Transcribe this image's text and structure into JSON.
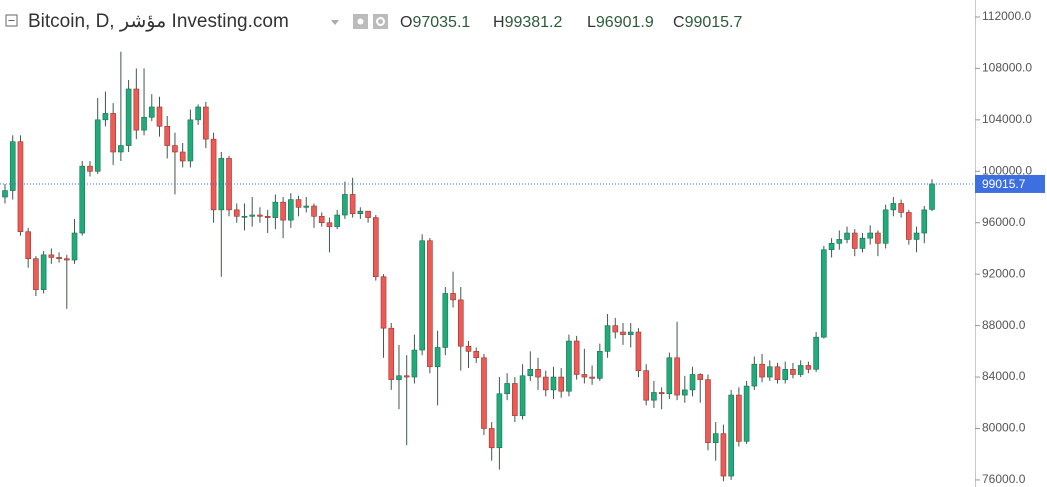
{
  "chart_data": {
    "type": "candlestick",
    "title": "Bitcoin, D, مؤشر Investing.com",
    "ohlc_labels": [
      "O",
      "H",
      "L",
      "C"
    ],
    "open": [
      98000,
      98500,
      102300,
      95300,
      93200,
      90800,
      93500,
      93300,
      93200,
      93100,
      95200,
      100400,
      100000,
      104000,
      104500,
      101500,
      102000,
      106400,
      103200,
      104200,
      105000,
      103500,
      102000,
      101500,
      100800,
      104000,
      105000,
      102500,
      97000,
      101000,
      97000,
      96500,
      96500,
      96600,
      96500,
      96400,
      97600,
      96200,
      97800,
      97200,
      97300,
      96500,
      96000,
      95700,
      96600,
      98200,
      96700,
      96900,
      96400,
      91800,
      87800,
      83800,
      84100,
      84000,
      86100,
      94600,
      84800,
      86300,
      90500,
      90000,
      86400,
      86000,
      85500,
      80000,
      78500,
      82700,
      83500,
      81000,
      84100,
      84600,
      84000,
      83000,
      84000,
      82900,
      86800,
      84200,
      84000,
      83900,
      86000,
      88000,
      87500,
      87300,
      87500,
      84500,
      82200,
      82800,
      82700,
      85500,
      82600,
      83000,
      84200,
      83800,
      78900,
      79600,
      76300,
      82600,
      79000,
      83300,
      85000,
      84000,
      84800,
      83800,
      84600,
      84200,
      84900,
      84600,
      87100,
      93900,
      94400,
      94700,
      95200,
      94000,
      94800,
      95200,
      94400,
      97000,
      97500,
      96800,
      94700,
      95200,
      97035.1
    ],
    "high": [
      99000,
      102800,
      102800,
      95600,
      93400,
      93800,
      94000,
      93700,
      93500,
      96300,
      100800,
      100800,
      105700,
      106200,
      105300,
      109300,
      107100,
      108000,
      108000,
      106000,
      105800,
      104300,
      103000,
      102200,
      104800,
      105200,
      105400,
      103000,
      101500,
      101200,
      97500,
      97500,
      98000,
      97200,
      97000,
      98200,
      98000,
      98300,
      98100,
      98000,
      97500,
      96800,
      96400,
      97000,
      99200,
      99500,
      97200,
      96900,
      96600,
      92000,
      88200,
      86500,
      85700,
      87300,
      95100,
      94800,
      87600,
      91000,
      92200,
      91000,
      86800,
      86300,
      85800,
      80500,
      84000,
      84300,
      84000,
      85000,
      86000,
      85500,
      84500,
      84800,
      84700,
      87300,
      87200,
      86200,
      84900,
      86600,
      88900,
      88600,
      88200,
      88200,
      87800,
      85000,
      83700,
      83200,
      85900,
      88300,
      84100,
      84800,
      84300,
      84200,
      80500,
      80300,
      83000,
      83200,
      83700,
      85600,
      85800,
      85300,
      85100,
      85200,
      85100,
      85300,
      85200,
      87500,
      94200,
      94800,
      95400,
      95700,
      95500,
      95200,
      95800,
      95400,
      97400,
      98000,
      97800,
      97000,
      95700,
      97300,
      99381.2
    ],
    "low": [
      97500,
      97800,
      95000,
      92500,
      90300,
      90500,
      92800,
      92900,
      89300,
      92800,
      95000,
      99600,
      99800,
      103500,
      100500,
      100800,
      101500,
      102500,
      102800,
      103900,
      102700,
      101000,
      98200,
      100300,
      100300,
      103600,
      101800,
      96000,
      91800,
      96500,
      96000,
      95400,
      95700,
      96000,
      95200,
      95500,
      94800,
      95600,
      96500,
      96800,
      95600,
      95700,
      93700,
      95500,
      96300,
      96400,
      96300,
      96000,
      91500,
      85500,
      83000,
      81500,
      78700,
      83500,
      85700,
      84300,
      81800,
      85700,
      89400,
      84500,
      84700,
      85100,
      79500,
      77500,
      76800,
      82200,
      80500,
      80700,
      83700,
      83000,
      82500,
      82300,
      82400,
      82500,
      83800,
      83500,
      83400,
      83700,
      85500,
      87000,
      86500,
      86300,
      84000,
      81800,
      81600,
      81500,
      82300,
      82200,
      82000,
      82500,
      82000,
      78300,
      77500,
      75900,
      76000,
      78600,
      78800,
      83000,
      83600,
      83700,
      83500,
      83500,
      83900,
      84000,
      84300,
      84400,
      87000,
      93300,
      93900,
      94400,
      93400,
      93700,
      94300,
      93400,
      94000,
      96500,
      96400,
      94300,
      93700,
      94400,
      96901.9
    ],
    "close": [
      98500,
      102300,
      95300,
      93200,
      90800,
      93500,
      93300,
      93200,
      93100,
      95200,
      100400,
      100000,
      104000,
      104500,
      101500,
      102000,
      106400,
      103200,
      104200,
      105000,
      103500,
      102000,
      101500,
      100800,
      104000,
      105000,
      102500,
      97000,
      101000,
      97000,
      96500,
      96500,
      96600,
      96500,
      96400,
      97600,
      96200,
      97800,
      97200,
      97300,
      96500,
      96000,
      95700,
      96600,
      98200,
      96700,
      96900,
      96400,
      91800,
      87800,
      83800,
      84100,
      84000,
      86100,
      94600,
      84800,
      86300,
      90500,
      90000,
      86400,
      86000,
      85500,
      80000,
      78500,
      82700,
      83500,
      81000,
      84100,
      84600,
      84000,
      83000,
      84000,
      82900,
      86800,
      84200,
      84000,
      83900,
      86000,
      88000,
      87500,
      87300,
      87500,
      84500,
      82200,
      82800,
      82700,
      85500,
      82600,
      83000,
      84200,
      83800,
      78900,
      79600,
      76300,
      82600,
      79000,
      83300,
      85000,
      84000,
      84800,
      83800,
      84600,
      84200,
      84900,
      84600,
      87100,
      93900,
      94400,
      94700,
      95200,
      94000,
      94800,
      95200,
      94400,
      97000,
      97500,
      96800,
      94700,
      95200,
      97000,
      99015.7
    ],
    "up_color": "#22ab7a",
    "down_color": "#ec5b55",
    "last_price_color": "#3d6fe0",
    "ylim": [
      75450,
      113320
    ],
    "yticks": [
      {
        "value": 76000,
        "label": "76000.0"
      },
      {
        "value": 80000,
        "label": "80000.0"
      },
      {
        "value": 84000,
        "label": "84000.0"
      },
      {
        "value": 88000,
        "label": "88000.0"
      },
      {
        "value": 92000,
        "label": "92000.0"
      },
      {
        "value": 96000,
        "label": "96000.0"
      },
      {
        "value": 100000,
        "label": "100000.0"
      },
      {
        "value": 104000,
        "label": "104000.0"
      },
      {
        "value": 108000,
        "label": "108000.0"
      },
      {
        "value": 112000,
        "label": "112000.0"
      }
    ],
    "last_price_line": true
  }
}
